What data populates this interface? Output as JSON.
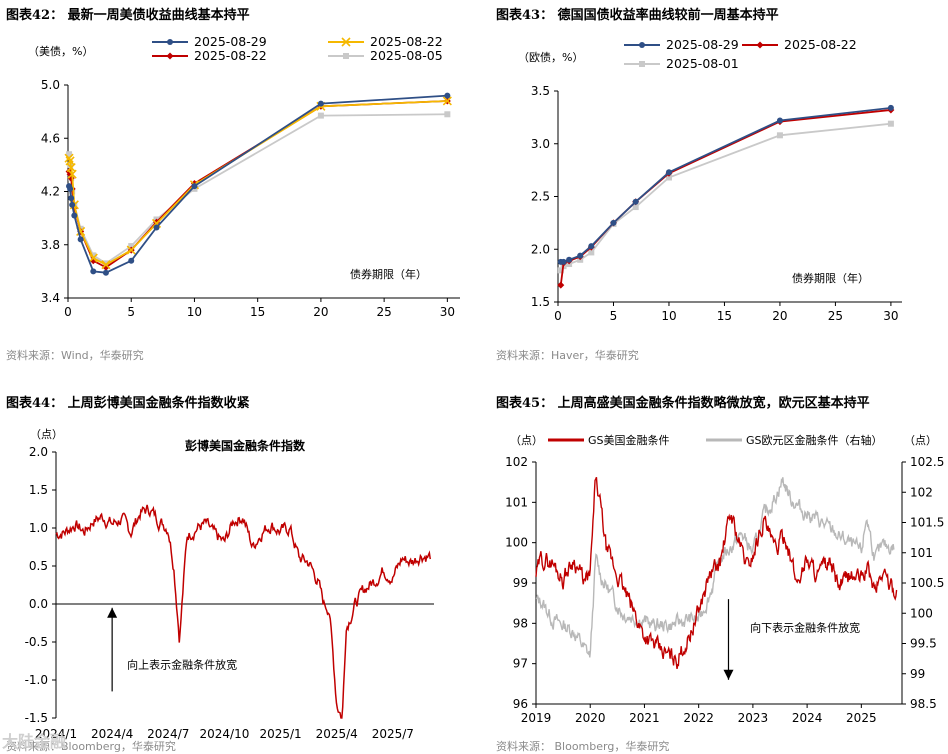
{
  "watermark": "大陆金融",
  "chart_data": [
    {
      "id": "c42",
      "type": "line",
      "title": "图表42：  最新一周美债收益曲线基本持平",
      "source": "资料来源：Wind，华泰研究",
      "ylabel": "（美债，%）",
      "xlabel": "债券期限（年）",
      "xlim": [
        0,
        31
      ],
      "ylim": [
        3.4,
        5.0
      ],
      "xticks": [
        0,
        5,
        10,
        15,
        20,
        25,
        30
      ],
      "yticks": [
        3.4,
        3.8,
        4.2,
        4.6,
        5.0
      ],
      "ytick_labels": [
        "3.4",
        "3.8",
        "4.2",
        "4.6",
        "5.0"
      ],
      "x": [
        0.083,
        0.167,
        0.25,
        0.33,
        0.5,
        1,
        2,
        3,
        5,
        7,
        10,
        20,
        30
      ],
      "series": [
        {
          "name": "2025-08-29",
          "color": "#2f4f86",
          "marker": "circle",
          "values": [
            4.24,
            4.22,
            4.15,
            4.1,
            4.02,
            3.84,
            3.6,
            3.59,
            3.68,
            3.93,
            4.24,
            4.86,
            4.92
          ]
        },
        {
          "name": "2025-08-22",
          "color": "#f5b800",
          "marker": "x",
          "values": [
            4.45,
            4.43,
            4.38,
            4.33,
            4.1,
            3.9,
            3.7,
            3.65,
            3.76,
            3.96,
            4.25,
            4.84,
            4.88
          ]
        },
        {
          "name": "2025-08-22",
          "color": "#c00000",
          "marker": "diamond",
          "values": [
            4.35,
            4.33,
            4.3,
            4.22,
            4.08,
            3.9,
            3.68,
            3.63,
            3.76,
            3.97,
            4.26,
            4.84,
            4.88
          ]
        },
        {
          "name": "2025-08-05",
          "color": "#c9c9c9",
          "marker": "square",
          "values": [
            4.48,
            4.4,
            4.3,
            4.2,
            4.1,
            3.92,
            3.72,
            3.66,
            3.79,
            3.99,
            4.22,
            4.77,
            4.78
          ]
        }
      ]
    },
    {
      "id": "c43",
      "type": "line",
      "title": "图表43：  德国国债收益率曲线较前一周基本持平",
      "source": "资料来源：Haver，华泰研究",
      "ylabel": "（欧债，%）",
      "xlabel": "债券期限（年）",
      "xlim": [
        0,
        31
      ],
      "ylim": [
        1.5,
        3.5
      ],
      "xticks": [
        0,
        5,
        10,
        15,
        20,
        25,
        30
      ],
      "yticks": [
        1.5,
        2.0,
        2.5,
        3.0,
        3.5
      ],
      "ytick_labels": [
        "1.5",
        "2.0",
        "2.5",
        "3.0",
        "3.5"
      ],
      "x": [
        0.25,
        0.5,
        1,
        2,
        3,
        5,
        7,
        10,
        20,
        30
      ],
      "series": [
        {
          "name": "2025-08-29",
          "color": "#2f4f86",
          "marker": "circle",
          "values": [
            1.88,
            1.88,
            1.9,
            1.94,
            2.03,
            2.25,
            2.45,
            2.73,
            3.22,
            3.34
          ]
        },
        {
          "name": "2025-08-22",
          "color": "#c00000",
          "marker": "diamond",
          "values": [
            1.66,
            1.87,
            1.89,
            1.93,
            2.02,
            2.25,
            2.45,
            2.72,
            3.21,
            3.32
          ]
        },
        {
          "name": "2025-08-01",
          "color": "#c9c9c9",
          "marker": "square",
          "values": [
            1.8,
            1.84,
            1.86,
            1.9,
            1.97,
            2.24,
            2.4,
            2.68,
            3.08,
            3.19
          ]
        }
      ]
    },
    {
      "id": "c44",
      "type": "line",
      "title": "图表44：  上周彭博美国金融条件指数收紧",
      "source": "资料来源：Bloomberg，华泰研究",
      "inner_title": "彭博美国金融条件指数",
      "ylabel": "（点）",
      "annotation": "向上表示金融条件放宽",
      "ylim": [
        -1.5,
        2.0
      ],
      "yticks": [
        -1.5,
        -1.0,
        -0.5,
        0.0,
        0.5,
        1.0,
        1.5,
        2.0
      ],
      "ytick_labels": [
        "-1.5",
        "-1.0",
        "-0.5",
        "0.0",
        "0.5",
        "1.0",
        "1.5",
        "2.0"
      ],
      "xlim": [
        0,
        20.2
      ],
      "xticks": [
        0,
        3,
        6,
        9,
        12,
        15,
        18
      ],
      "xtick_labels": [
        "2024/1",
        "2024/4",
        "2024/7",
        "2024/10",
        "2025/1",
        "2025/4",
        "2025/7"
      ],
      "series": [
        {
          "name": "彭博美国金融条件指数",
          "color": "#c00000",
          "key_x": [
            0,
            0.5,
            1,
            1.5,
            2,
            2.5,
            3,
            3.5,
            4,
            4.5,
            5,
            5.5,
            6,
            6.3,
            6.6,
            7,
            7.5,
            8,
            8.5,
            9,
            9.5,
            10,
            10.5,
            11,
            11.5,
            12,
            12.5,
            13,
            13.5,
            14,
            14.3,
            14.6,
            15,
            15.3,
            15.5,
            16,
            16.5,
            17,
            17.5,
            18,
            18.5,
            19,
            19.5,
            20
          ],
          "key_y": [
            0.92,
            0.95,
            1.05,
            0.95,
            1.1,
            1.15,
            1.05,
            1.12,
            0.95,
            1.2,
            1.25,
            1.1,
            1.0,
            0.5,
            -0.45,
            0.9,
            1.0,
            1.05,
            0.9,
            0.8,
            1.1,
            1.15,
            0.75,
            0.95,
            1.05,
            0.95,
            1.0,
            0.6,
            0.55,
            0.3,
            0.0,
            -0.05,
            -1.3,
            -1.5,
            -0.3,
            0.0,
            0.2,
            0.3,
            0.45,
            0.35,
            0.6,
            0.55,
            0.65,
            0.62
          ]
        }
      ]
    },
    {
      "id": "c45",
      "type": "line",
      "title": "图表45：  上周高盛美国金融条件指数略微放宽，欧元区基本持平",
      "source": "资料来源：    Bloomberg，华泰研究",
      "ylabel_left": "（点）",
      "ylabel_right": "（点）",
      "annotation": "向下表示金融条件放宽",
      "ylim_left": [
        96,
        102
      ],
      "ylim_right": [
        98.5,
        102.5
      ],
      "yticks_left": [
        96,
        97,
        98,
        99,
        100,
        101,
        102
      ],
      "ytick_labels_left": [
        "96",
        "97",
        "98",
        "99",
        "100",
        "101",
        "102"
      ],
      "yticks_right": [
        98.5,
        99,
        99.5,
        100,
        100.5,
        101,
        101.5,
        102,
        102.5
      ],
      "ytick_labels_right": [
        "98.5",
        "99",
        "99.5",
        "100",
        "100.5",
        "101",
        "101.5",
        "102",
        "102.5"
      ],
      "xlim": [
        2019,
        2025.75
      ],
      "xticks": [
        2019,
        2020,
        2021,
        2022,
        2023,
        2024,
        2025
      ],
      "xtick_labels": [
        "2019",
        "2020",
        "2021",
        "2022",
        "2023",
        "2024",
        "2025"
      ],
      "series": [
        {
          "name": "GS美国金融条件",
          "axis": "left",
          "color": "#c00000",
          "key_x": [
            2019,
            2019.1,
            2019.3,
            2019.5,
            2019.7,
            2019.9,
            2020.0,
            2020.1,
            2020.2,
            2020.3,
            2020.5,
            2020.7,
            2021,
            2021.3,
            2021.6,
            2021.8,
            2022.0,
            2022.2,
            2022.4,
            2022.5,
            2022.6,
            2022.75,
            2022.9,
            2023.0,
            2023.2,
            2023.4,
            2023.6,
            2023.8,
            2024.0,
            2024.2,
            2024.4,
            2024.6,
            2024.8,
            2025.0,
            2025.1,
            2025.25,
            2025.4,
            2025.55,
            2025.65
          ],
          "key_y": [
            99.2,
            99.6,
            99.5,
            99.1,
            99.6,
            99.0,
            99.2,
            101.6,
            100.8,
            99.8,
            99.2,
            98.6,
            97.7,
            97.3,
            97.1,
            97.6,
            98.3,
            99.2,
            99.5,
            100.2,
            100.7,
            100.0,
            99.4,
            99.7,
            100.6,
            99.8,
            100.2,
            99.0,
            99.6,
            99.2,
            99.5,
            98.9,
            99.2,
            99.1,
            99.4,
            98.8,
            99.3,
            98.9,
            98.8
          ]
        },
        {
          "name": "GS欧元区金融条件（右轴）",
          "axis": "right",
          "color": "#b8b8b8",
          "key_x": [
            2019,
            2019.1,
            2019.3,
            2019.5,
            2019.7,
            2019.9,
            2020.0,
            2020.1,
            2020.2,
            2020.4,
            2020.6,
            2020.9,
            2021.2,
            2021.5,
            2021.8,
            2022.0,
            2022.2,
            2022.4,
            2022.6,
            2022.8,
            2023.0,
            2023.2,
            2023.4,
            2023.55,
            2023.7,
            2023.9,
            2024.1,
            2024.4,
            2024.7,
            2025.0,
            2025.1,
            2025.25,
            2025.4,
            2025.6
          ],
          "key_y": [
            100.2,
            100.2,
            99.9,
            99.8,
            99.7,
            99.4,
            99.3,
            100.9,
            100.6,
            100.3,
            100.0,
            99.9,
            99.8,
            99.8,
            99.9,
            99.9,
            100.3,
            100.9,
            101.1,
            101.3,
            101.0,
            101.6,
            101.9,
            102.2,
            101.9,
            101.7,
            101.6,
            101.4,
            101.2,
            101.0,
            101.6,
            100.9,
            101.1,
            101.1
          ]
        }
      ]
    }
  ]
}
